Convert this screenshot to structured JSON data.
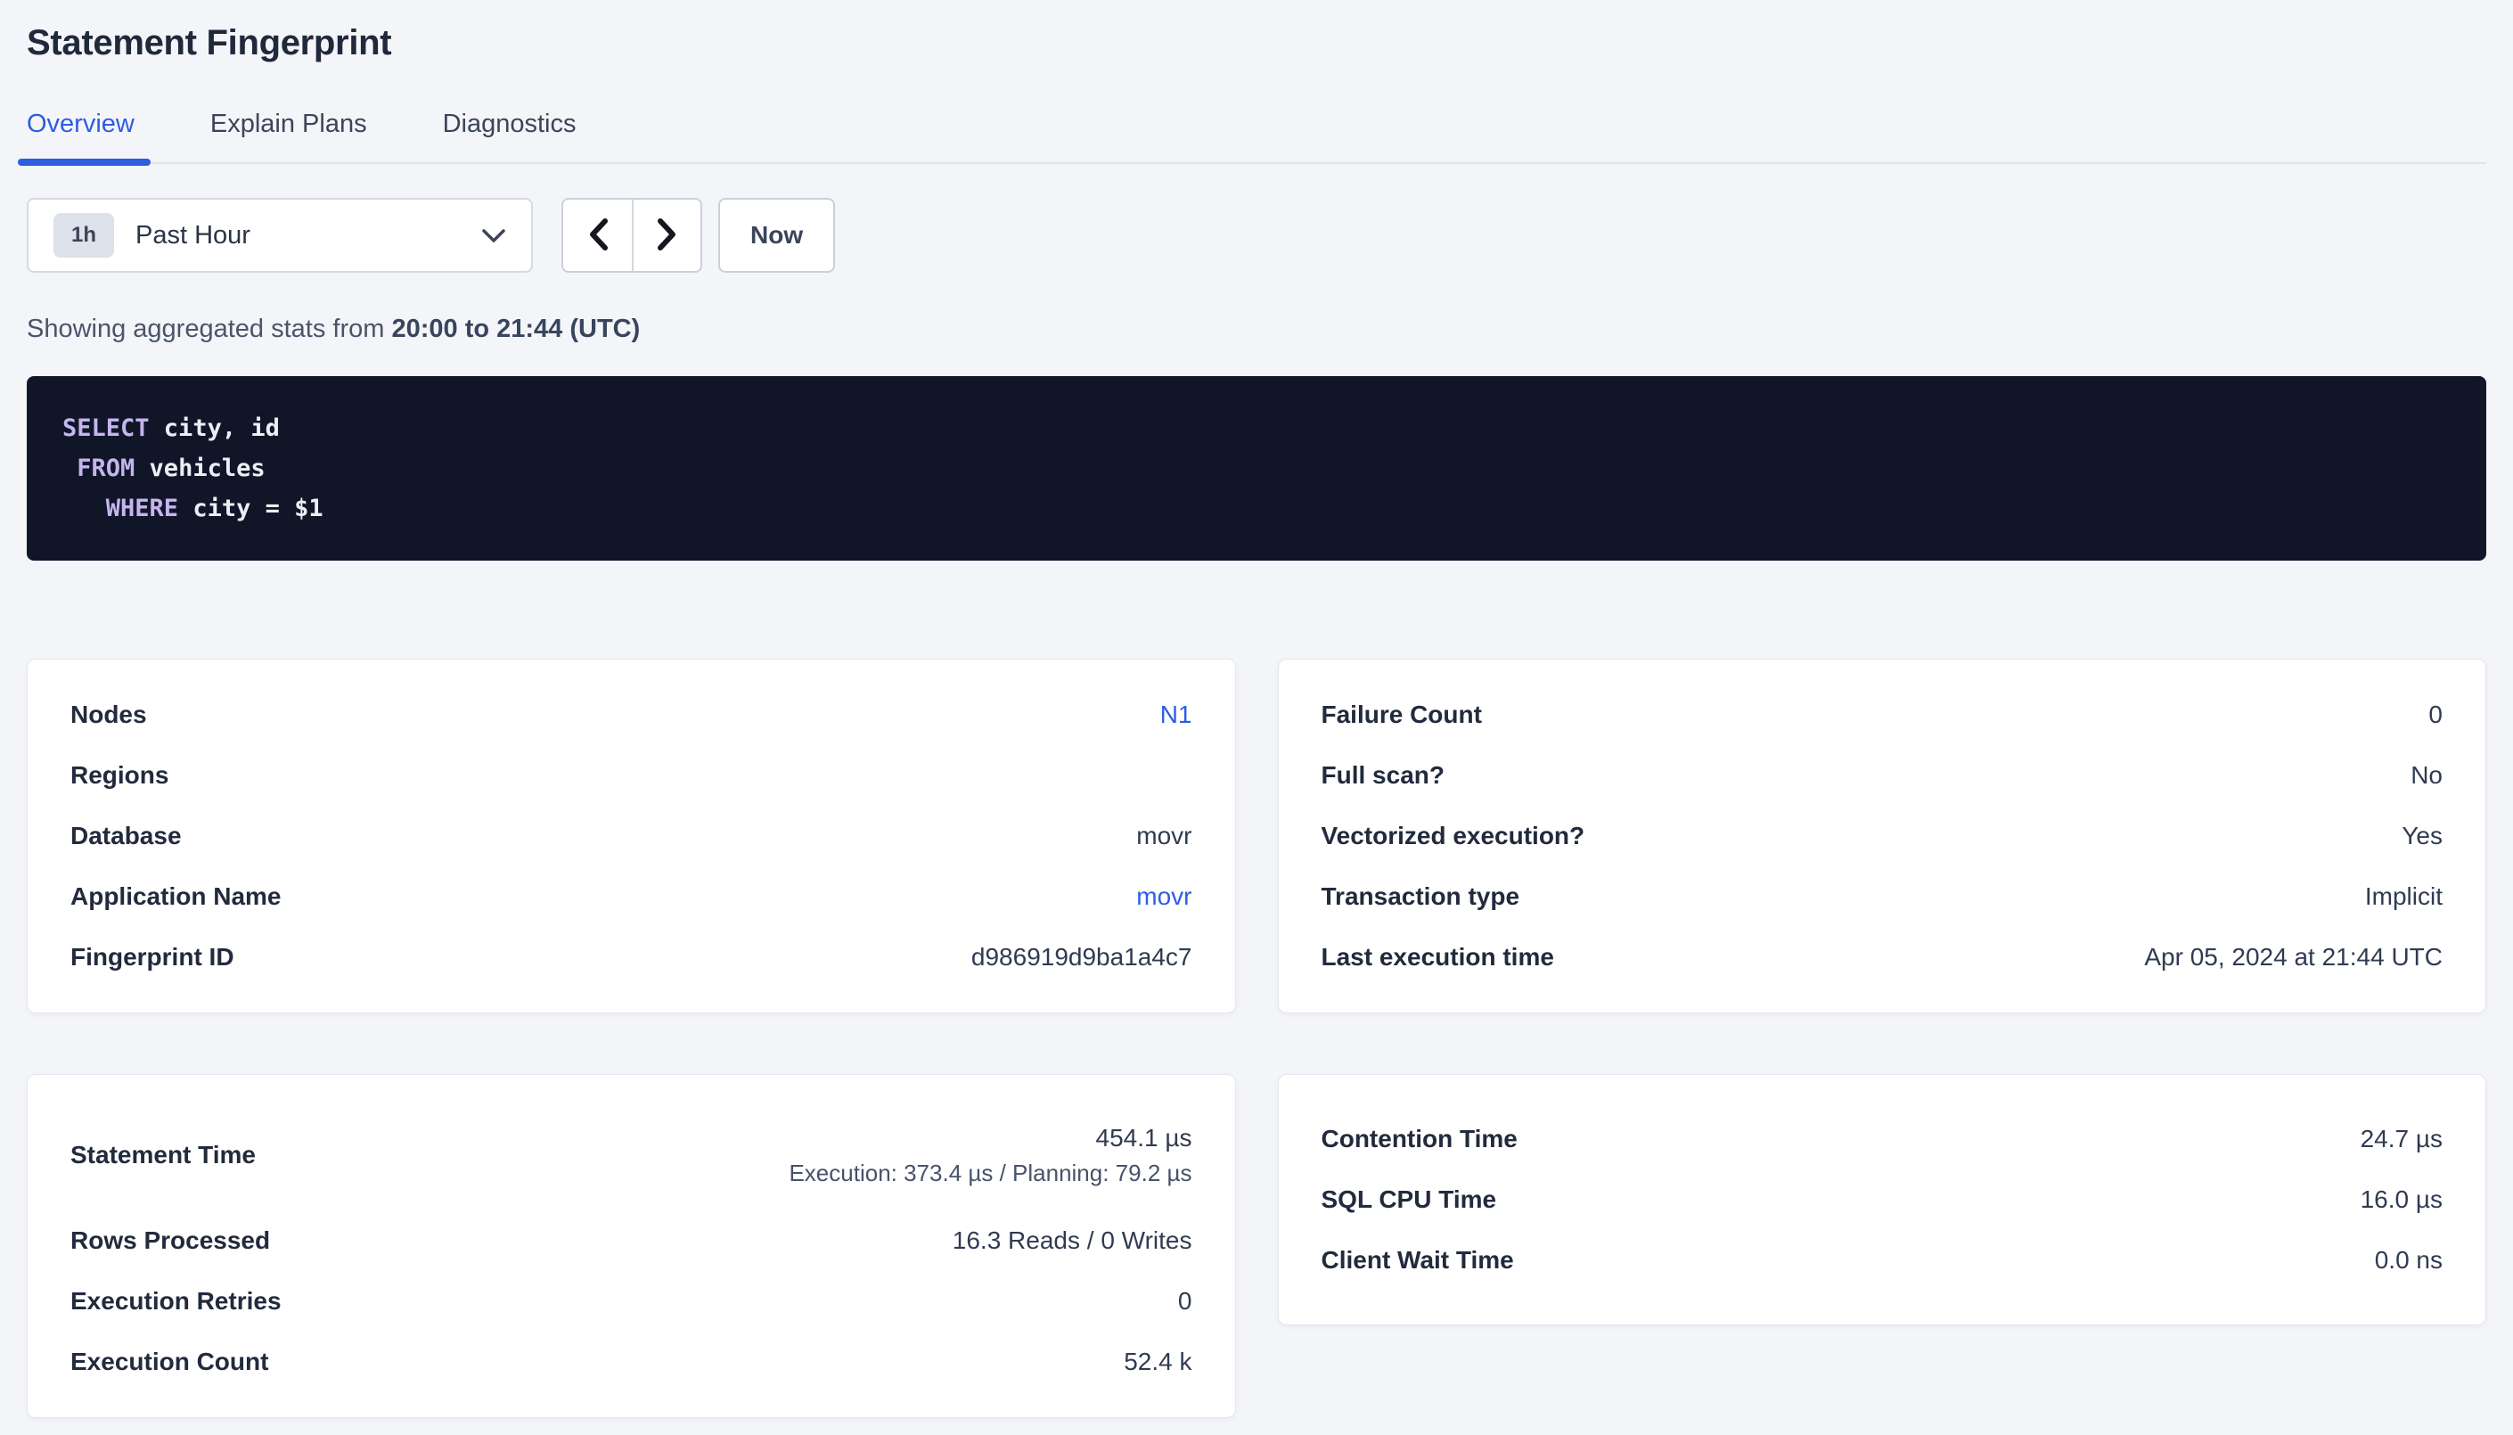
{
  "page": {
    "title": "Statement Fingerprint"
  },
  "tabs": [
    {
      "label": "Overview",
      "active": true
    },
    {
      "label": "Explain Plans",
      "active": false
    },
    {
      "label": "Diagnostics",
      "active": false
    }
  ],
  "time_picker": {
    "range_badge": "1h",
    "range_label": "Past Hour",
    "prev_icon": "chevron-left",
    "next_icon": "chevron-right",
    "now_label": "Now"
  },
  "stats_line": {
    "prefix": "Showing aggregated stats from ",
    "range": "20:00 to 21:44 (UTC)"
  },
  "sql": {
    "lines": [
      [
        {
          "t": "SELECT",
          "kw": true
        },
        {
          "t": " city, id"
        }
      ],
      [
        {
          "t": " "
        },
        {
          "t": "FROM",
          "kw": true
        },
        {
          "t": " vehicles"
        }
      ],
      [
        {
          "t": "   "
        },
        {
          "t": "WHERE",
          "kw": true
        },
        {
          "t": " city = $1"
        }
      ]
    ]
  },
  "summary_cards": {
    "left": {
      "rows": [
        {
          "label": "Nodes",
          "value": "N1",
          "link": true
        },
        {
          "label": "Regions",
          "value": ""
        },
        {
          "label": "Database",
          "value": "movr"
        },
        {
          "label": "Application Name",
          "value": "movr",
          "link": true
        },
        {
          "label": "Fingerprint ID",
          "value": "d986919d9ba1a4c7"
        }
      ]
    },
    "right": {
      "rows": [
        {
          "label": "Failure Count",
          "value": "0"
        },
        {
          "label": "Full scan?",
          "value": "No"
        },
        {
          "label": "Vectorized execution?",
          "value": "Yes"
        },
        {
          "label": "Transaction type",
          "value": "Implicit"
        },
        {
          "label": "Last execution time",
          "value": "Apr 05, 2024 at 21:44 UTC"
        }
      ]
    }
  },
  "metric_cards": {
    "left": {
      "rows": [
        {
          "label": "Statement Time",
          "value": "454.1 µs",
          "subvalue": "Execution: 373.4 µs / Planning: 79.2 µs"
        },
        {
          "label": "Rows Processed",
          "value": "16.3 Reads / 0 Writes"
        },
        {
          "label": "Execution Retries",
          "value": "0"
        },
        {
          "label": "Execution Count",
          "value": "52.4 k"
        }
      ]
    },
    "right": {
      "rows": [
        {
          "label": "Contention Time",
          "value": "24.7 µs"
        },
        {
          "label": "SQL CPU Time",
          "value": "16.0 µs"
        },
        {
          "label": "Client Wait Time",
          "value": "0.0 ns"
        }
      ]
    }
  },
  "colors": {
    "accent_blue": "#2d5de1",
    "link_blue": "#2d5de8",
    "sql_background": "#101628",
    "sql_keyword": "#c6b4ee",
    "page_background": "#f4f5f9"
  }
}
